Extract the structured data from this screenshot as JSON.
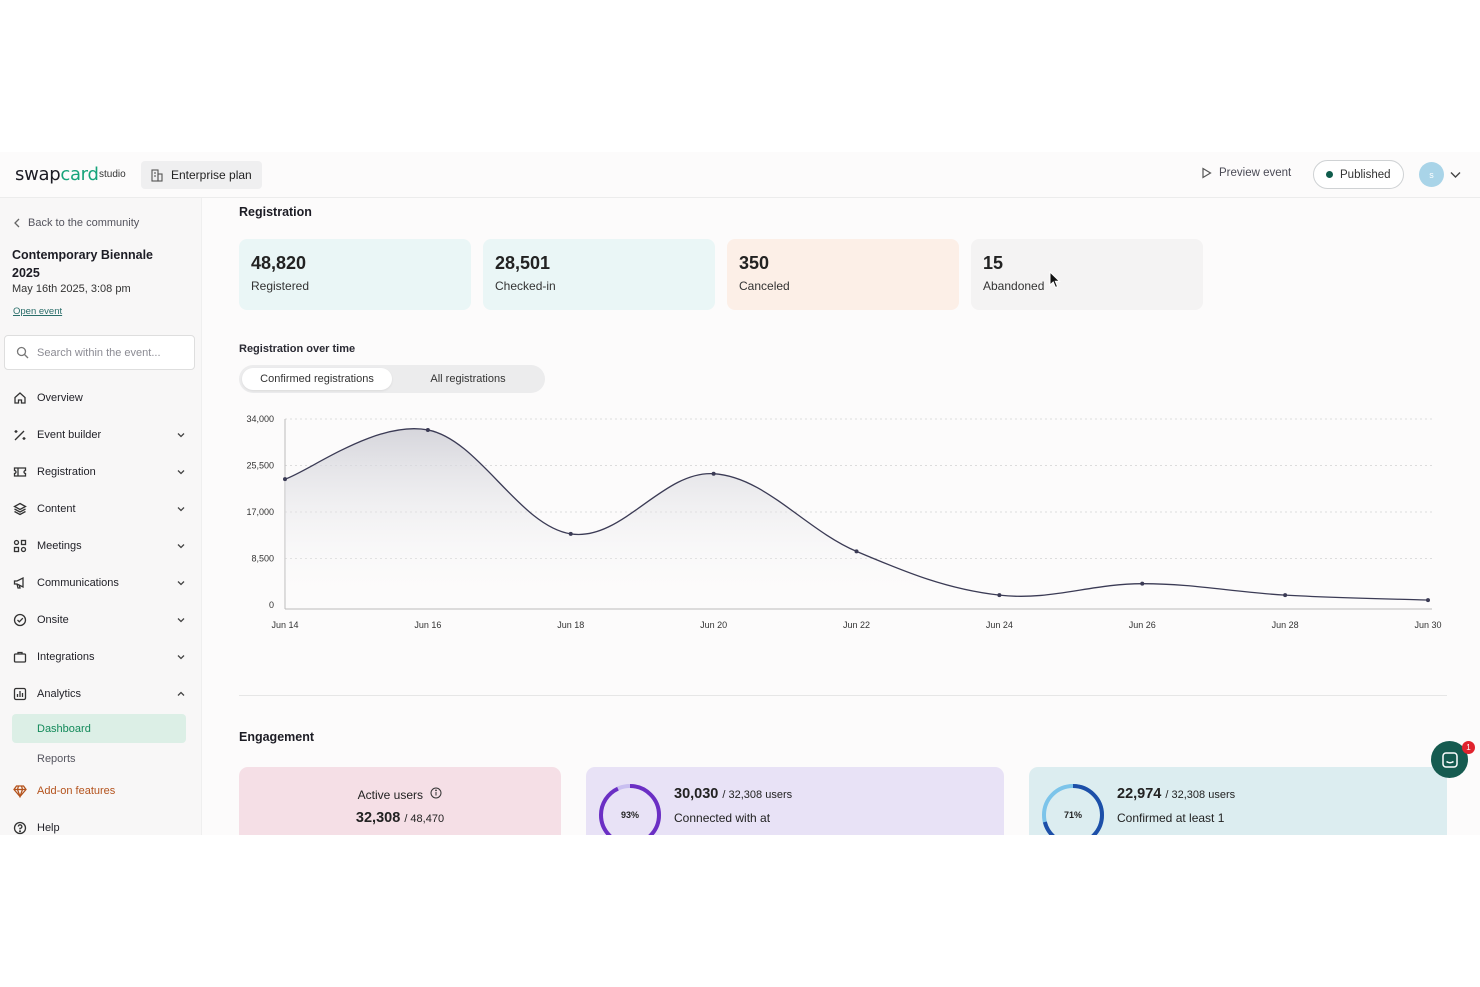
{
  "topbar": {
    "logo_prefix": "swap",
    "logo_accent": "card",
    "logo_suffix": "studio",
    "plan_label": "Enterprise plan",
    "preview_label": "Preview event",
    "status_label": "Published",
    "avatar_initial": "s"
  },
  "sidebar": {
    "back_label": "Back to the community",
    "event_name": "Contemporary Biennale 2025",
    "event_date": "May 16th 2025, 3:08 pm",
    "open_event_label": "Open event",
    "search_placeholder": "Search within the event...",
    "nav": [
      {
        "label": "Overview",
        "icon": "home-icon"
      },
      {
        "label": "Event builder",
        "icon": "wand-icon"
      },
      {
        "label": "Registration",
        "icon": "ticket-icon"
      },
      {
        "label": "Content",
        "icon": "layers-icon"
      },
      {
        "label": "Meetings",
        "icon": "meetings-icon"
      },
      {
        "label": "Communications",
        "icon": "megaphone-icon"
      },
      {
        "label": "Onsite",
        "icon": "badge-check-icon"
      },
      {
        "label": "Integrations",
        "icon": "briefcase-icon"
      },
      {
        "label": "Analytics",
        "icon": "bar-chart-icon"
      }
    ],
    "analytics_sub": [
      {
        "label": "Dashboard",
        "active": true
      },
      {
        "label": "Reports",
        "active": false
      }
    ],
    "addon_label": "Add-on features",
    "help_label": "Help"
  },
  "registration": {
    "title": "Registration",
    "stats": [
      {
        "value": "48,820",
        "label": "Registered",
        "color": "#eaf6f6"
      },
      {
        "value": "28,501",
        "label": "Checked-in",
        "color": "#eaf6f6"
      },
      {
        "value": "350",
        "label": "Canceled",
        "color": "#fcefe7"
      },
      {
        "value": "15",
        "label": "Abandoned",
        "color": "#f4f3f3"
      }
    ],
    "over_time_title": "Registration over time",
    "toggle": {
      "confirmed": "Confirmed registrations",
      "all": "All registrations"
    }
  },
  "chart_data": {
    "type": "area",
    "x": [
      "Jun 14",
      "Jun 16",
      "Jun 18",
      "Jun 20",
      "Jun 22",
      "Jun 24",
      "Jun 26",
      "Jun 28",
      "Jun 30"
    ],
    "series": [
      {
        "values": [
          23000,
          32000,
          13000,
          24000,
          9800,
          1800,
          3900,
          1800,
          900
        ]
      }
    ],
    "yticks": [
      "34,000",
      "25,500",
      "17,000",
      "8,500",
      "0"
    ],
    "ylim": [
      0,
      34000
    ],
    "grid": "horizontal dashed",
    "line_color": "#3b3b55"
  },
  "engagement": {
    "title": "Engagement",
    "active_users_label": "Active users",
    "active_users_value": "32,308",
    "active_users_total": "/ 48,470",
    "connected_value": "30,030",
    "connected_total": "/ 32,308 users",
    "connected_desc": "Connected with at",
    "connected_pct_label": "93%",
    "connected_pct": 0.93,
    "confirmed_value": "22,974",
    "confirmed_total": "/ 32,308 users",
    "confirmed_desc": "Confirmed at least 1",
    "confirmed_pct_label": "71%",
    "confirmed_pct": 0.71
  },
  "chat": {
    "badge": "1"
  }
}
